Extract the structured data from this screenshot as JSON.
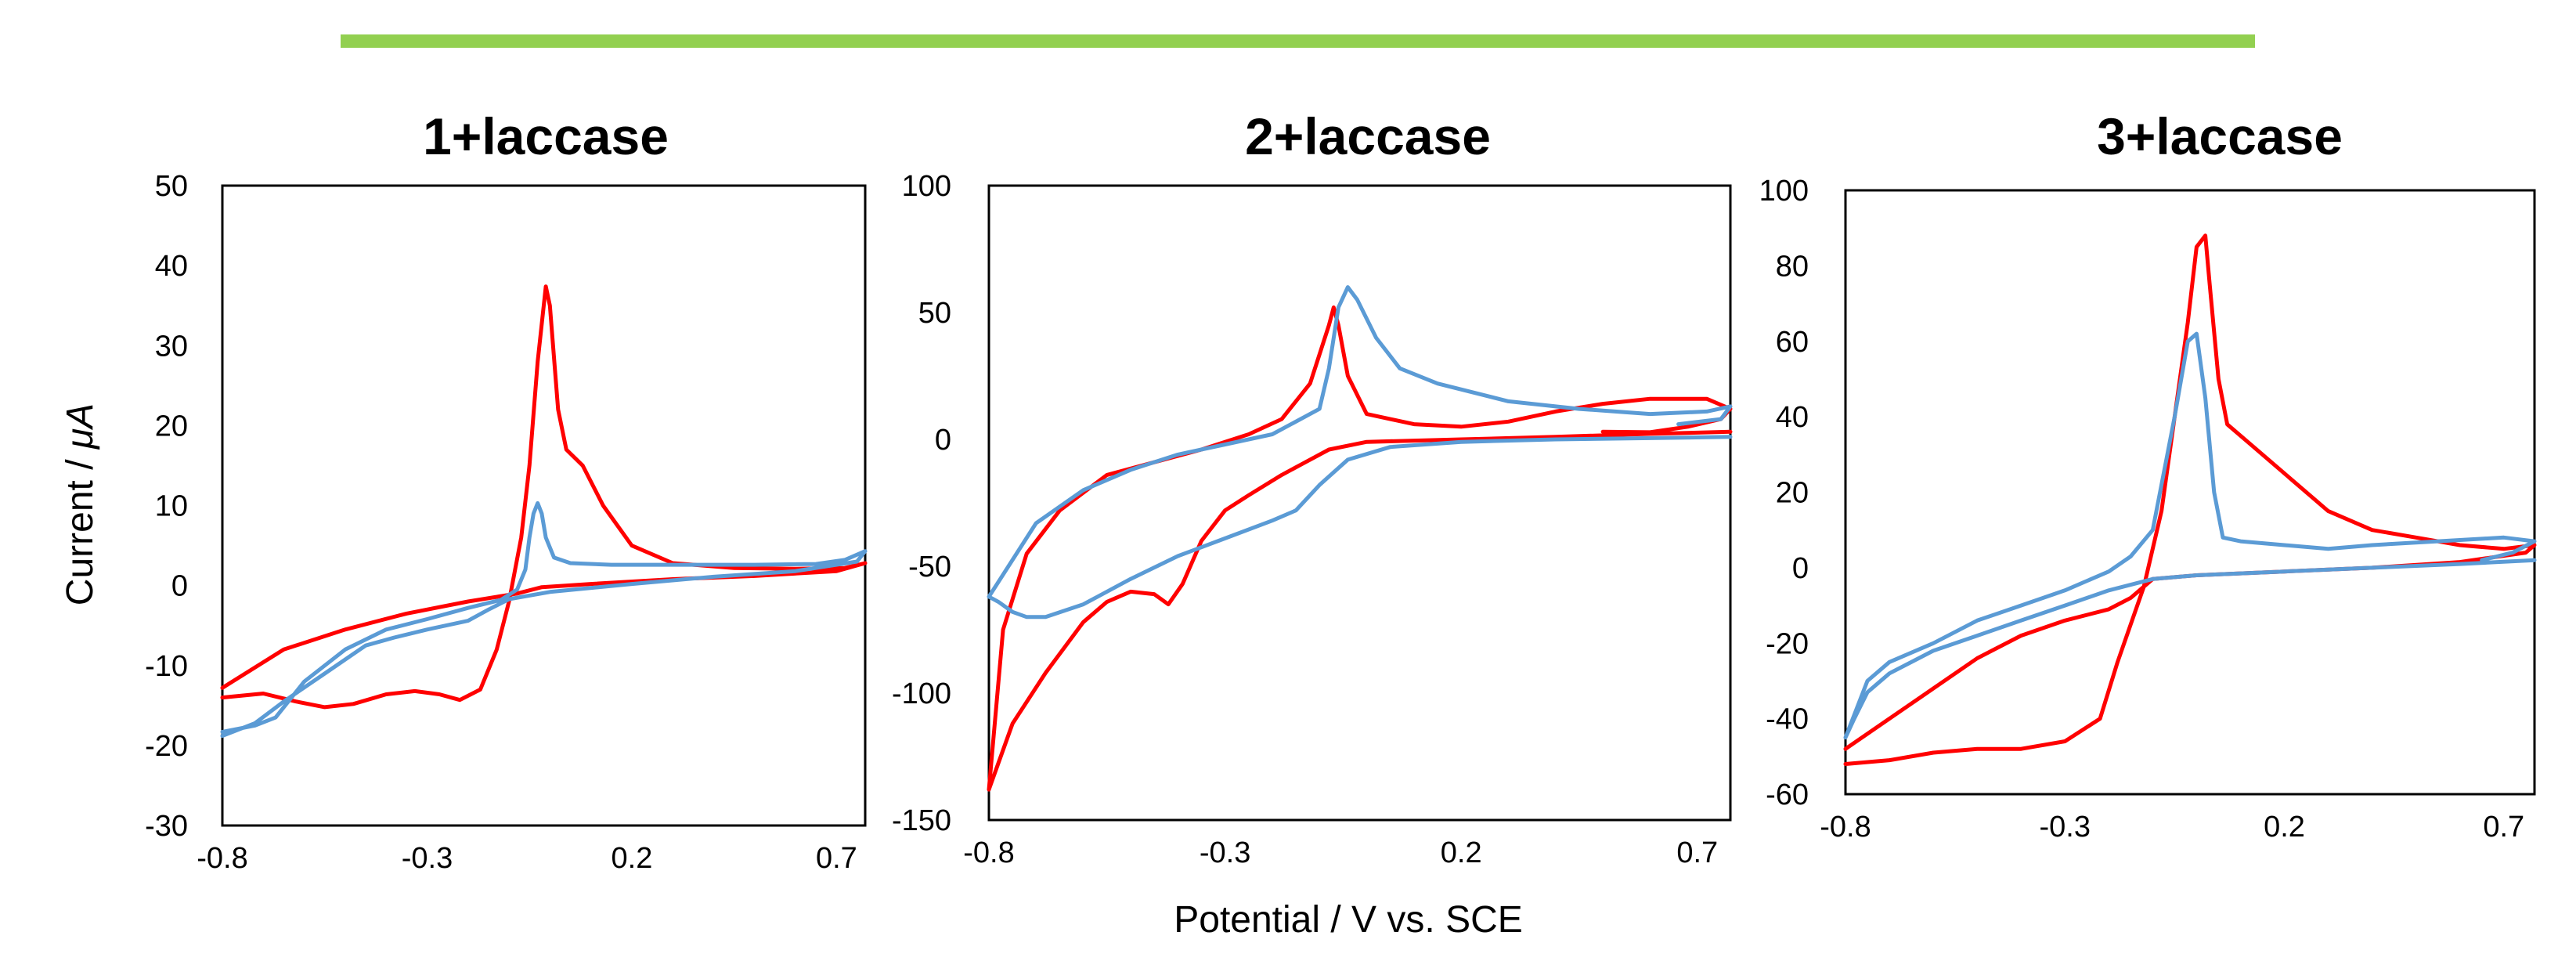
{
  "colors": {
    "banner": "#92d050",
    "red_series": "#ff0000",
    "blue_series": "#5b9bd5",
    "frame": "#000000"
  },
  "shared": {
    "ylabel_prefix": "Current / ",
    "ylabel_unit": "μA",
    "xlabel": "Potential / V vs. SCE"
  },
  "chart_data": [
    {
      "type": "line",
      "title": "1+laccase",
      "xlabel": "Potential / V vs. SCE",
      "ylabel": "Current / μA",
      "xlim": [
        -0.8,
        0.77
      ],
      "ylim": [
        -30,
        50
      ],
      "xticks": [
        -0.8,
        -0.3,
        0.2,
        0.7
      ],
      "xtick_labels": [
        "-0.8",
        "-0.3",
        "0.2",
        "0.7"
      ],
      "yticks": [
        -30,
        -20,
        -10,
        0,
        10,
        20,
        30,
        40,
        50
      ],
      "ytick_labels": [
        "-30",
        "-20",
        "-10",
        "0",
        "10",
        "20",
        "30",
        "40",
        "50"
      ],
      "grid": false,
      "series": [
        {
          "name": "red",
          "color": "#ff0000",
          "points": [
            [
              -0.8,
              -14
            ],
            [
              -0.7,
              -13.5
            ],
            [
              -0.62,
              -14.5
            ],
            [
              -0.55,
              -15.2
            ],
            [
              -0.48,
              -14.8
            ],
            [
              -0.4,
              -13.6
            ],
            [
              -0.33,
              -13.2
            ],
            [
              -0.27,
              -13.6
            ],
            [
              -0.22,
              -14.3
            ],
            [
              -0.17,
              -13
            ],
            [
              -0.13,
              -8
            ],
            [
              -0.1,
              -2
            ],
            [
              -0.07,
              6
            ],
            [
              -0.05,
              15
            ],
            [
              -0.03,
              28
            ],
            [
              -0.01,
              37.4
            ],
            [
              0.0,
              35
            ],
            [
              0.02,
              22
            ],
            [
              0.04,
              17
            ],
            [
              0.08,
              15
            ],
            [
              0.13,
              10
            ],
            [
              0.2,
              5
            ],
            [
              0.3,
              2.8
            ],
            [
              0.45,
              2.2
            ],
            [
              0.6,
              2.1
            ],
            [
              0.72,
              2.2
            ],
            [
              0.77,
              2.8
            ],
            [
              0.7,
              1.8
            ],
            [
              0.5,
              1.2
            ],
            [
              0.3,
              0.8
            ],
            [
              0.1,
              0.2
            ],
            [
              -0.02,
              -0.2
            ],
            [
              -0.08,
              -1
            ],
            [
              -0.2,
              -2
            ],
            [
              -0.35,
              -3.5
            ],
            [
              -0.5,
              -5.5
            ],
            [
              -0.65,
              -8
            ],
            [
              -0.8,
              -12.8
            ]
          ]
        },
        {
          "name": "blue",
          "color": "#5b9bd5",
          "points": [
            [
              -0.8,
              -18.3
            ],
            [
              -0.72,
              -17.5
            ],
            [
              -0.67,
              -16.5
            ],
            [
              -0.6,
              -12
            ],
            [
              -0.5,
              -8
            ],
            [
              -0.4,
              -5.5
            ],
            [
              -0.3,
              -4.2
            ],
            [
              -0.2,
              -2.8
            ],
            [
              -0.12,
              -1.8
            ],
            [
              -0.08,
              -0.5
            ],
            [
              -0.06,
              2
            ],
            [
              -0.05,
              6
            ],
            [
              -0.04,
              9
            ],
            [
              -0.03,
              10.3
            ],
            [
              -0.02,
              9
            ],
            [
              -0.01,
              6
            ],
            [
              0.01,
              3.5
            ],
            [
              0.05,
              2.8
            ],
            [
              0.15,
              2.6
            ],
            [
              0.3,
              2.6
            ],
            [
              0.5,
              2.6
            ],
            [
              0.65,
              2.7
            ],
            [
              0.72,
              3.2
            ],
            [
              0.77,
              4.3
            ],
            [
              0.75,
              3
            ],
            [
              0.6,
              1.8
            ],
            [
              0.4,
              1.1
            ],
            [
              0.2,
              0.2
            ],
            [
              0.0,
              -0.8
            ],
            [
              -0.1,
              -1.7
            ],
            [
              -0.15,
              -3
            ],
            [
              -0.2,
              -4.4
            ],
            [
              -0.3,
              -5.5
            ],
            [
              -0.38,
              -6.5
            ],
            [
              -0.45,
              -7.5
            ],
            [
              -0.55,
              -11
            ],
            [
              -0.65,
              -14.5
            ],
            [
              -0.72,
              -17.2
            ],
            [
              -0.8,
              -18.8
            ]
          ]
        }
      ]
    },
    {
      "type": "line",
      "title": "2+laccase",
      "xlabel": "Potential / V vs. SCE",
      "ylabel": "",
      "xlim": [
        -0.8,
        0.77
      ],
      "ylim": [
        -150,
        100
      ],
      "xticks": [
        -0.8,
        -0.3,
        0.2,
        0.7
      ],
      "xtick_labels": [
        "-0.8",
        "-0.3",
        "0.2",
        "0.7"
      ],
      "yticks": [
        -150,
        -100,
        -50,
        0,
        50,
        100
      ],
      "ytick_labels": [
        "-150",
        "-100",
        "-50",
        "0",
        "50",
        "100"
      ],
      "grid": false,
      "series": [
        {
          "name": "red",
          "color": "#ff0000",
          "points": [
            [
              0.5,
              3
            ],
            [
              0.6,
              2.8
            ],
            [
              0.68,
              5
            ],
            [
              0.75,
              8
            ],
            [
              0.77,
              12
            ],
            [
              0.72,
              16
            ],
            [
              0.6,
              16
            ],
            [
              0.5,
              14
            ],
            [
              0.4,
              11
            ],
            [
              0.3,
              7
            ],
            [
              0.2,
              5
            ],
            [
              0.1,
              6
            ],
            [
              0.0,
              10
            ],
            [
              -0.04,
              25
            ],
            [
              -0.06,
              45
            ],
            [
              -0.07,
              52
            ],
            [
              -0.08,
              45
            ],
            [
              -0.12,
              22
            ],
            [
              -0.18,
              8
            ],
            [
              -0.25,
              2
            ],
            [
              -0.35,
              -4
            ],
            [
              -0.45,
              -9
            ],
            [
              -0.55,
              -14
            ],
            [
              -0.65,
              -28
            ],
            [
              -0.72,
              -45
            ],
            [
              -0.77,
              -75
            ],
            [
              -0.8,
              -138
            ],
            [
              -0.75,
              -112
            ],
            [
              -0.68,
              -92
            ],
            [
              -0.6,
              -72
            ],
            [
              -0.55,
              -64
            ],
            [
              -0.5,
              -60
            ],
            [
              -0.45,
              -61
            ],
            [
              -0.42,
              -65
            ],
            [
              -0.39,
              -57
            ],
            [
              -0.35,
              -40
            ],
            [
              -0.3,
              -28
            ],
            [
              -0.25,
              -22
            ],
            [
              -0.18,
              -14
            ],
            [
              -0.14,
              -10
            ],
            [
              -0.08,
              -4
            ],
            [
              0.0,
              -1
            ],
            [
              0.2,
              0
            ],
            [
              0.4,
              1
            ],
            [
              0.6,
              2.2
            ],
            [
              0.77,
              3
            ]
          ]
        },
        {
          "name": "blue",
          "color": "#5b9bd5",
          "points": [
            [
              0.66,
              6
            ],
            [
              0.75,
              8
            ],
            [
              0.77,
              13
            ],
            [
              0.72,
              11
            ],
            [
              0.6,
              10
            ],
            [
              0.45,
              12
            ],
            [
              0.3,
              15
            ],
            [
              0.15,
              22
            ],
            [
              0.07,
              28
            ],
            [
              0.02,
              40
            ],
            [
              -0.02,
              55
            ],
            [
              -0.04,
              60
            ],
            [
              -0.06,
              52
            ],
            [
              -0.08,
              28
            ],
            [
              -0.1,
              12
            ],
            [
              -0.2,
              2
            ],
            [
              -0.3,
              -2
            ],
            [
              -0.4,
              -6
            ],
            [
              -0.5,
              -12
            ],
            [
              -0.6,
              -20
            ],
            [
              -0.7,
              -33
            ],
            [
              -0.8,
              -62
            ],
            [
              -0.78,
              -64
            ],
            [
              -0.75,
              -68
            ],
            [
              -0.72,
              -70
            ],
            [
              -0.68,
              -70
            ],
            [
              -0.6,
              -65
            ],
            [
              -0.5,
              -55
            ],
            [
              -0.4,
              -46
            ],
            [
              -0.3,
              -39
            ],
            [
              -0.2,
              -32
            ],
            [
              -0.15,
              -28
            ],
            [
              -0.1,
              -18
            ],
            [
              -0.04,
              -8
            ],
            [
              0.05,
              -3
            ],
            [
              0.2,
              -1
            ],
            [
              0.4,
              0
            ],
            [
              0.6,
              0.5
            ],
            [
              0.77,
              1
            ]
          ]
        }
      ]
    },
    {
      "type": "line",
      "title": "3+laccase",
      "xlabel": "Potential / V vs. SCE",
      "ylabel": "",
      "xlim": [
        -0.8,
        0.77
      ],
      "ylim": [
        -60,
        100
      ],
      "xticks": [
        -0.8,
        -0.3,
        0.2,
        0.7
      ],
      "xtick_labels": [
        "-0.8",
        "-0.3",
        "0.2",
        "0.7"
      ],
      "yticks": [
        -60,
        -40,
        -20,
        0,
        20,
        40,
        60,
        80,
        100
      ],
      "ytick_labels": [
        "-60",
        "-40",
        "-20",
        "0",
        "20",
        "40",
        "60",
        "80",
        "100"
      ],
      "grid": false,
      "series": [
        {
          "name": "red",
          "color": "#ff0000",
          "points": [
            [
              -0.8,
              -52
            ],
            [
              -0.7,
              -51
            ],
            [
              -0.6,
              -49
            ],
            [
              -0.5,
              -48
            ],
            [
              -0.4,
              -48
            ],
            [
              -0.3,
              -46
            ],
            [
              -0.22,
              -40
            ],
            [
              -0.18,
              -25
            ],
            [
              -0.12,
              -5
            ],
            [
              -0.08,
              15
            ],
            [
              -0.05,
              40
            ],
            [
              -0.02,
              65
            ],
            [
              0.0,
              85
            ],
            [
              0.02,
              88
            ],
            [
              0.03,
              75
            ],
            [
              0.05,
              50
            ],
            [
              0.07,
              38
            ],
            [
              0.12,
              33
            ],
            [
              0.2,
              25
            ],
            [
              0.3,
              15
            ],
            [
              0.4,
              10
            ],
            [
              0.5,
              8
            ],
            [
              0.6,
              6
            ],
            [
              0.7,
              5
            ],
            [
              0.77,
              6
            ],
            [
              0.75,
              4
            ],
            [
              0.6,
              1.5
            ],
            [
              0.4,
              0
            ],
            [
              0.2,
              -1
            ],
            [
              0.0,
              -2
            ],
            [
              -0.1,
              -3
            ],
            [
              -0.15,
              -8
            ],
            [
              -0.2,
              -11
            ],
            [
              -0.3,
              -14
            ],
            [
              -0.4,
              -18
            ],
            [
              -0.5,
              -24
            ],
            [
              -0.6,
              -32
            ],
            [
              -0.7,
              -40
            ],
            [
              -0.8,
              -48
            ]
          ]
        },
        {
          "name": "blue",
          "color": "#5b9bd5",
          "points": [
            [
              0.65,
              2
            ],
            [
              0.72,
              4
            ],
            [
              0.77,
              7
            ],
            [
              0.7,
              8
            ],
            [
              0.55,
              7
            ],
            [
              0.4,
              6
            ],
            [
              0.3,
              5
            ],
            [
              0.2,
              6
            ],
            [
              0.1,
              7
            ],
            [
              0.06,
              8
            ],
            [
              0.04,
              20
            ],
            [
              0.02,
              45
            ],
            [
              0.0,
              62
            ],
            [
              -0.02,
              60
            ],
            [
              -0.05,
              40
            ],
            [
              -0.1,
              10
            ],
            [
              -0.15,
              3
            ],
            [
              -0.2,
              -1
            ],
            [
              -0.3,
              -6
            ],
            [
              -0.4,
              -10
            ],
            [
              -0.5,
              -14
            ],
            [
              -0.6,
              -20
            ],
            [
              -0.7,
              -25
            ],
            [
              -0.75,
              -30
            ],
            [
              -0.8,
              -45
            ],
            [
              -0.78,
              -40
            ],
            [
              -0.75,
              -33
            ],
            [
              -0.7,
              -28
            ],
            [
              -0.6,
              -22
            ],
            [
              -0.5,
              -18
            ],
            [
              -0.4,
              -14
            ],
            [
              -0.3,
              -10
            ],
            [
              -0.2,
              -6
            ],
            [
              -0.1,
              -3
            ],
            [
              0.0,
              -2
            ],
            [
              0.2,
              -1
            ],
            [
              0.4,
              0
            ],
            [
              0.6,
              1
            ],
            [
              0.77,
              2
            ]
          ]
        }
      ]
    }
  ]
}
